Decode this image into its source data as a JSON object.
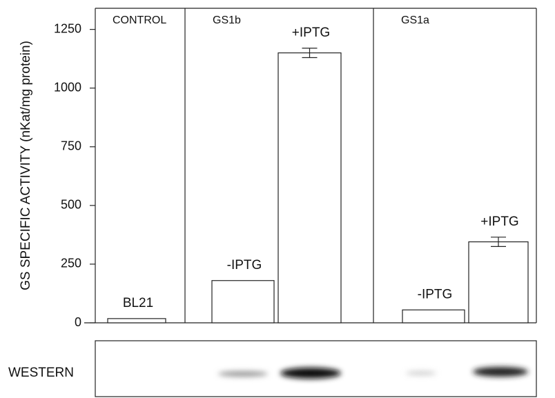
{
  "chart_data": {
    "type": "bar",
    "y_label": "GS SPECIFIC ACTIVITY (nKat/mg protein)",
    "ylim": [
      0,
      1340
    ],
    "yticks": [
      0,
      250,
      500,
      750,
      1000,
      1250
    ],
    "panels": [
      {
        "title": "CONTROL",
        "categories": [
          "BL21"
        ],
        "values": [
          18
        ],
        "errors": [
          null
        ]
      },
      {
        "title": "GS1b",
        "categories": [
          "-IPTG",
          "+IPTG"
        ],
        "values": [
          180,
          1150
        ],
        "errors": [
          null,
          20
        ]
      },
      {
        "title": "GS1a",
        "categories": [
          "-IPTG",
          "+IPTG"
        ],
        "values": [
          55,
          345
        ],
        "errors": [
          null,
          20
        ]
      }
    ],
    "western_label": "WESTERN"
  }
}
